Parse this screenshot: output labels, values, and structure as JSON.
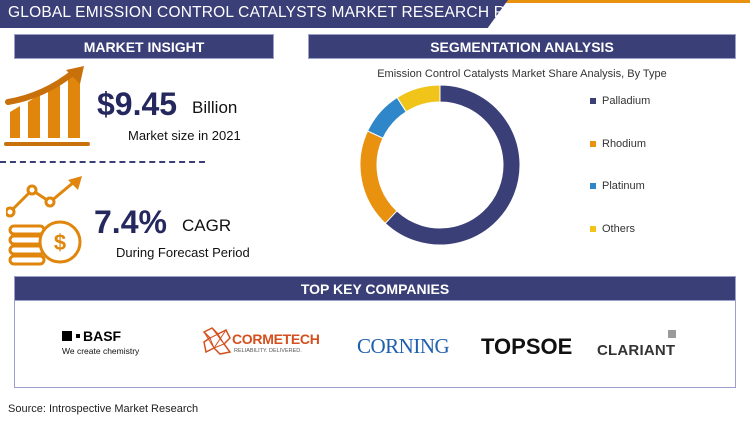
{
  "header": {
    "title": "GLOBAL EMISSION CONTROL CATALYSTS MARKET RESEARCH REPORT"
  },
  "market_insight": {
    "heading": "MARKET INSIGHT",
    "market_size_value": "$9.45",
    "market_size_unit": "Billion",
    "market_size_label": "Market size in 2021",
    "cagr_value": "7.4%",
    "cagr_unit": "CAGR",
    "cagr_label": "During Forecast Period"
  },
  "segmentation": {
    "heading": "SEGMENTATION ANALYSIS"
  },
  "chart_data": {
    "type": "pie",
    "title": "Emission Control Catalysts Market Share Analysis, By Type",
    "categories": [
      "Palladium",
      "Rhodium",
      "Platinum",
      "Others"
    ],
    "values": [
      62,
      20,
      9,
      9
    ],
    "colors": [
      "#3a3f78",
      "#e8920f",
      "#2f86c9",
      "#f0c419"
    ],
    "legend_position": "right"
  },
  "companies": {
    "heading": "TOP KEY COMPANIES",
    "basf": {
      "name": "BASF",
      "tagline": "We create chemistry"
    },
    "cormetech": {
      "name": "CORMETECH",
      "tagline": "RELIABILITY. DELIVERED."
    },
    "corning": {
      "name": "CORNING"
    },
    "topsoe": {
      "name": "TOPSOE"
    },
    "clariant": {
      "name": "CLARIANT"
    }
  },
  "colors": {
    "navy": "#3a3f78",
    "orange": "#e8920f"
  },
  "footer": {
    "source": "Source: Introspective Market Research"
  }
}
